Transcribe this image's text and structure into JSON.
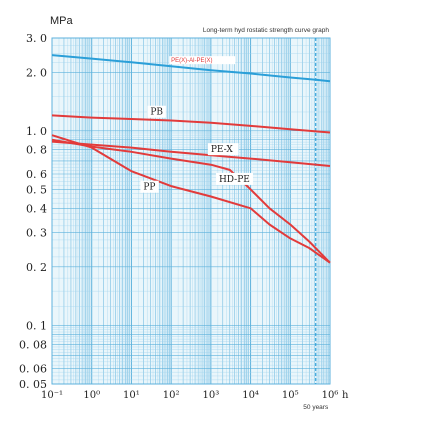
{
  "chart_data": {
    "type": "line",
    "title": "Long-term hyd rostatic  strength curve graph",
    "ylabel": "MPa",
    "xunit": "h",
    "ylim": [
      0.05,
      3.0
    ],
    "xlim": [
      0.1,
      1000000
    ],
    "xscale": "log",
    "yscale": "log",
    "grid": true,
    "yticks": [
      {
        "v": 3.0,
        "label": "3. 0"
      },
      {
        "v": 2.0,
        "label": "2. 0"
      },
      {
        "v": 1.0,
        "label": "1. 0"
      },
      {
        "v": 0.8,
        "label": "0. 8"
      },
      {
        "v": 0.6,
        "label": "0. 6"
      },
      {
        "v": 0.5,
        "label": "0. 5"
      },
      {
        "v": 0.4,
        "label": "0. 4"
      },
      {
        "v": 0.3,
        "label": "0. 3"
      },
      {
        "v": 0.2,
        "label": "0. 2"
      },
      {
        "v": 0.1,
        "label": "0. 1"
      },
      {
        "v": 0.08,
        "label": "0. 08"
      },
      {
        "v": 0.06,
        "label": "0. 06"
      },
      {
        "v": 0.05,
        "label": "0. 05"
      }
    ],
    "xticks": [
      {
        "v": 0.1,
        "label": "10⁻¹"
      },
      {
        "v": 1,
        "label": "10⁰"
      },
      {
        "v": 10,
        "label": "10¹"
      },
      {
        "v": 100,
        "label": "10²"
      },
      {
        "v": 1000,
        "label": "10³"
      },
      {
        "v": 10000,
        "label": "10⁴"
      },
      {
        "v": 100000,
        "label": "10⁵"
      },
      {
        "v": 1000000,
        "label": "10⁶"
      }
    ],
    "marker": {
      "x": 438000,
      "label": "50 years"
    },
    "series": [
      {
        "name": "PE(X)-Al-PE(X)",
        "color": "#2b9fd8",
        "x": [
          0.1,
          1,
          10,
          100,
          1000,
          10000,
          100000,
          438000,
          1000000
        ],
        "y": [
          2.45,
          2.35,
          2.25,
          2.15,
          2.05,
          1.97,
          1.88,
          1.83,
          1.8
        ]
      },
      {
        "name": "PB",
        "color": "#e23b3b",
        "x": [
          0.1,
          1,
          10,
          100,
          1000,
          10000,
          100000,
          1000000
        ],
        "y": [
          1.2,
          1.17,
          1.15,
          1.13,
          1.1,
          1.06,
          1.02,
          0.98
        ]
      },
      {
        "name": "PE-X",
        "color": "#e23b3b",
        "x": [
          0.1,
          1,
          10,
          100,
          1000,
          10000,
          100000,
          1000000
        ],
        "y": [
          0.88,
          0.85,
          0.82,
          0.78,
          0.75,
          0.72,
          0.69,
          0.66
        ]
      },
      {
        "name": "HD-PE",
        "color": "#e23b3b",
        "x": [
          0.1,
          1,
          10,
          100,
          1000,
          3000,
          10000,
          30000,
          100000,
          300000,
          1000000
        ],
        "y": [
          0.9,
          0.83,
          0.78,
          0.72,
          0.67,
          0.63,
          0.5,
          0.4,
          0.33,
          0.27,
          0.21
        ]
      },
      {
        "name": "PP",
        "color": "#e23b3b",
        "x": [
          0.1,
          1,
          10,
          100,
          1000,
          10000,
          30000,
          100000,
          300000,
          1000000
        ],
        "y": [
          0.95,
          0.82,
          0.62,
          0.52,
          0.46,
          0.4,
          0.33,
          0.28,
          0.25,
          0.21
        ]
      }
    ]
  }
}
